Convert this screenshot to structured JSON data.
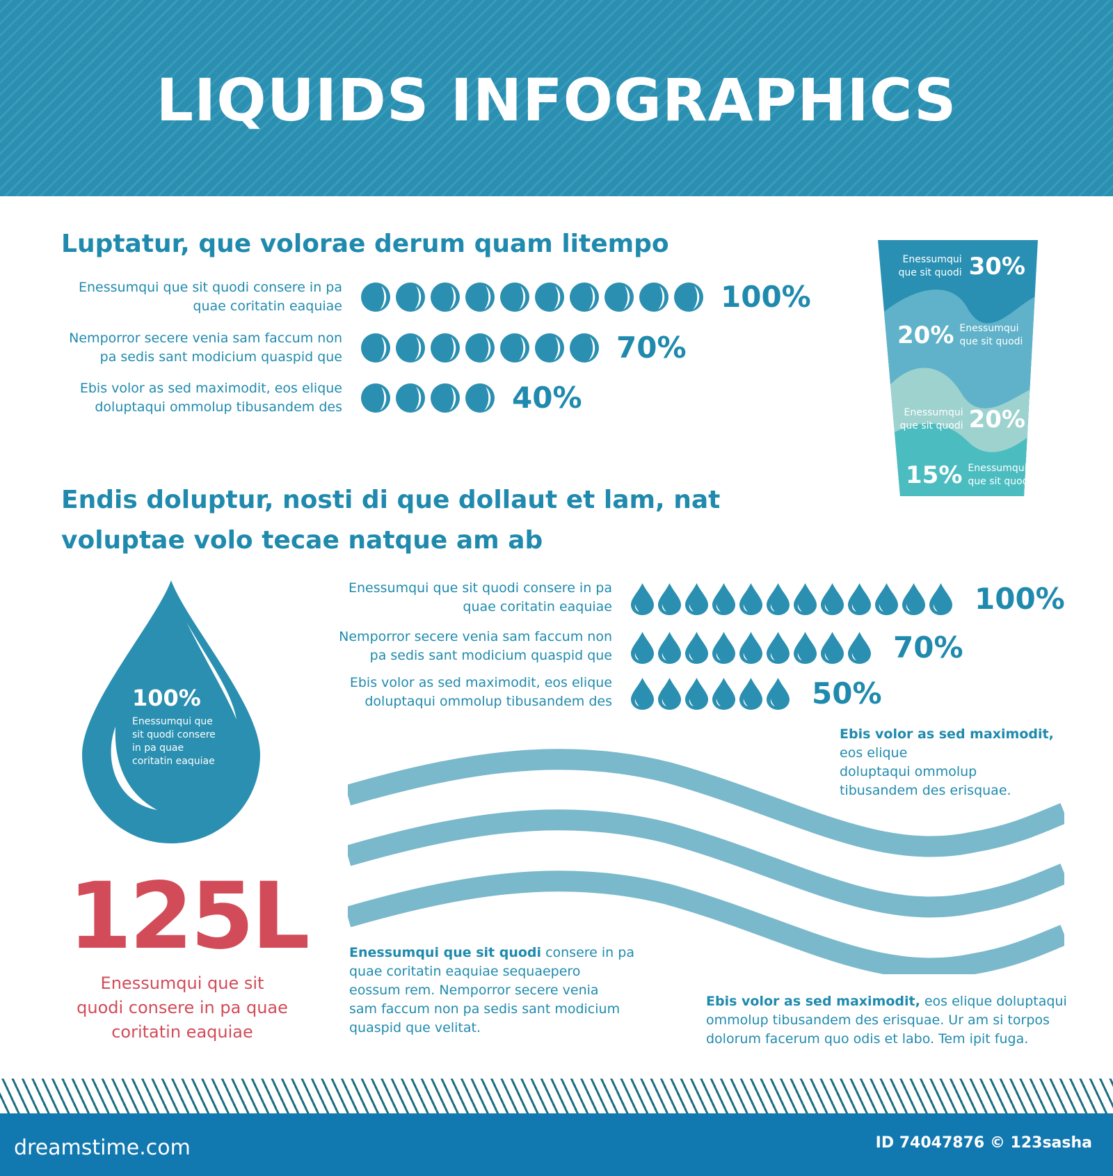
{
  "header": {
    "title": "LIQUIDS INFOGRAPHICS"
  },
  "section1": {
    "heading": "Luptatur, que volorae derum quam litempo",
    "rows": [
      {
        "line1": "Enessumqui que sit quodi consere in pa",
        "line2": "quae coritatin eaquiae",
        "percent": "100%",
        "value": 100,
        "icons": 10
      },
      {
        "line1": "Nemporror secere venia sam faccum non",
        "line2": "pa sedis sant modicium quaspid que",
        "percent": "70%",
        "value": 70,
        "icons": 7
      },
      {
        "line1": "Ebis volor as sed maximodit, eos elique",
        "line2": "doluptaqui ommolup tibusandem des",
        "percent": "40%",
        "value": 40,
        "icons": 4
      }
    ],
    "icon": "circle-drop-icon"
  },
  "cup": {
    "layers": [
      {
        "percent": "30%",
        "line1": "Enessumqui",
        "line2": "que sit quodi",
        "color": "#2a90b3"
      },
      {
        "percent": "20%",
        "line1": "Enessumqui",
        "line2": "que sit quodi",
        "color": "#5fb2c9"
      },
      {
        "percent": "20%",
        "line1": "Enessumqui",
        "line2": "que sit quodi",
        "color": "#9dd2cf"
      },
      {
        "percent": "15%",
        "line1": "Enessumqui",
        "line2": "que sit quodi",
        "color": "#4bbcbf"
      }
    ]
  },
  "section2": {
    "heading_line1": "Endis doluptur, nosti di que dollaut et lam, nat",
    "heading_line2": "voluptae volo tecae natque am ab",
    "rows": [
      {
        "line1": "Enessumqui que sit quodi consere in pa",
        "line2": "quae coritatin eaquiae",
        "percent": "100%",
        "value": 100,
        "icons": 12
      },
      {
        "line1": "Nemporror secere venia sam faccum non",
        "line2": "pa sedis sant modicium quaspid que",
        "percent": "70%",
        "value": 70,
        "icons": 9
      },
      {
        "line1": "Ebis volor as sed maximodit, eos elique",
        "line2": "doluptaqui ommolup tibusandem des",
        "percent": "50%",
        "value": 50,
        "icons": 6
      }
    ],
    "icon": "water-drop-icon"
  },
  "big_drop": {
    "percent": "100%",
    "lines": [
      "Enessumqui que",
      "sit quodi consere",
      "in pa quae",
      "coritatin eaquiae"
    ]
  },
  "volume": {
    "value": "125L",
    "lines": [
      "Enessumqui que sit",
      "quodi consere in pa quae",
      "coritatin eaquiae"
    ]
  },
  "text_top_right": {
    "bold": "Ebis volor as sed maximodit,",
    "rest_lines": [
      "eos elique",
      "doluptaqui ommolup",
      "tibusandem des erisquae."
    ]
  },
  "text_bottom_left": {
    "bold": "Enessumqui que sit quodi",
    "first_rest": " consere in pa",
    "lines": [
      "quae coritatin eaquiae sequaepero",
      "eossum rem. Nemporror secere venia",
      "sam faccum non pa sedis sant modicium",
      "quaspid que velitat."
    ]
  },
  "text_bottom_right": {
    "bold": "Ebis volor as sed maximodit,",
    "first_rest": " eos elique doluptaqui",
    "lines": [
      "ommolup tibusandem des erisquae. Ur am si torpos",
      "dolorum facerum quo odis et labo. Tem ipit fuga."
    ]
  },
  "colors": {
    "primary": "#2a8fb0",
    "text": "#1f8aad",
    "accent_red": "#d24b58",
    "wave": "#7ab8cc",
    "footer": "#1278b0"
  },
  "footer": {
    "logo": "dreamstime.com",
    "id_text": "ID 74047876 © 123sasha"
  }
}
